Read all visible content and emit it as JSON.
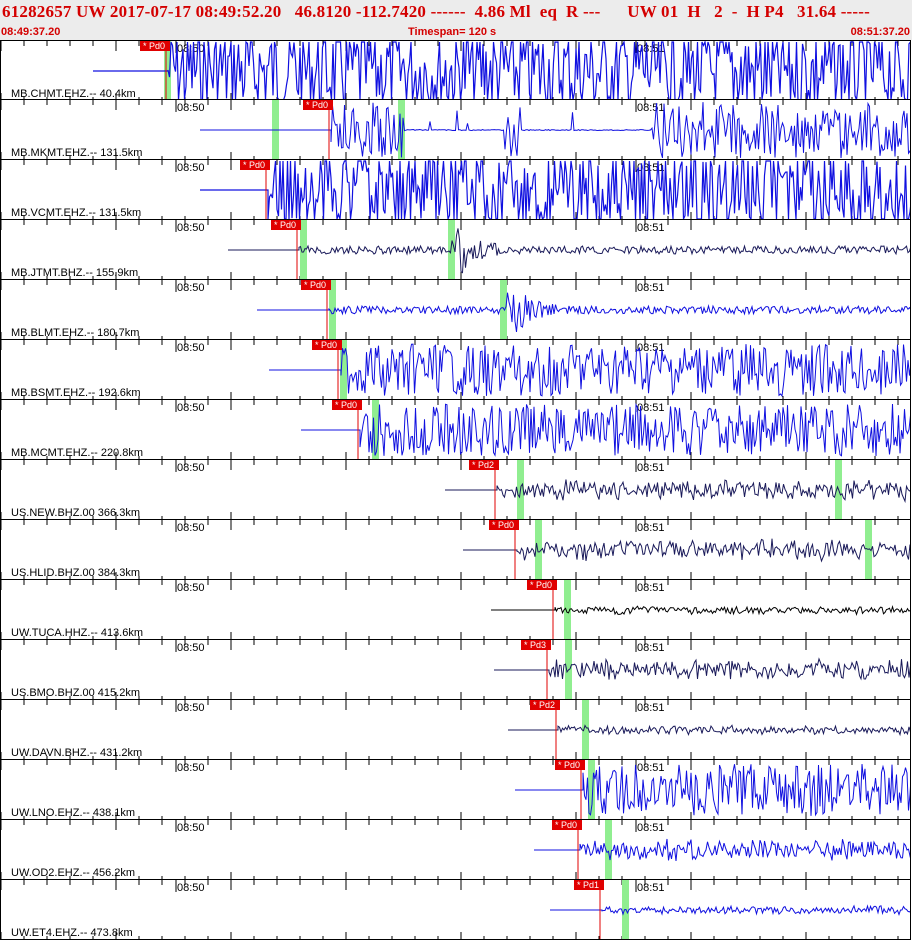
{
  "header": {
    "event_line": "61282657 UW 2017-07-17 08:49:52.20   46.8120 -112.7420 ------  4.86 Ml  eq  R ---      UW 01  H   2  -  H P4   31.64 -----",
    "time_start": "08:49:37.20",
    "timespan": "Timespan= 120 s",
    "time_end": "08:51:37.20"
  },
  "time_labels": {
    "t1": "08:50",
    "t2": "08:51"
  },
  "colors": {
    "trace_blue": "#1010e0",
    "trace_dark": "#1a1a5a",
    "pick_red": "#e00000",
    "green_mark": "#90ee90",
    "header_red": "#d40000"
  },
  "traces": [
    {
      "station": "MB.CHMT.EHZ.-- 40.4km",
      "pick": "* Pd0",
      "style": "saturated",
      "color": "blue"
    },
    {
      "station": "MB.MKMT.EHZ.-- 131.5km",
      "pick": "* Pd0",
      "style": "burst",
      "color": "blue"
    },
    {
      "station": "MB.VCMT.EHZ.-- 131.5km",
      "pick": "* Pd0",
      "style": "saturated",
      "color": "blue"
    },
    {
      "station": "MB.JTMT.BHZ.-- 155.9km",
      "pick": "* Pd0",
      "style": "quiet",
      "color": "dark"
    },
    {
      "station": "MB.BLMT.EHZ.-- 180.7km",
      "pick": "* Pd0",
      "style": "quiet",
      "color": "blue"
    },
    {
      "station": "MB.BSMT.EHZ.-- 192.6km",
      "pick": "* Pd0",
      "style": "heavy",
      "color": "blue"
    },
    {
      "station": "MB.MCMT.EHZ.-- 220.8km",
      "pick": "* Pd0",
      "style": "heavy",
      "color": "blue"
    },
    {
      "station": "US.NEW.BHZ.00 366.3km",
      "pick": "* Pd2",
      "style": "medium",
      "color": "dark"
    },
    {
      "station": "US.HLID.BHZ.00 384.3km",
      "pick": "* Pd0",
      "style": "medium",
      "color": "dark"
    },
    {
      "station": "UW.TUCA.HHZ.-- 413.6km",
      "pick": "* Pd0",
      "style": "thin",
      "color": "black"
    },
    {
      "station": "US.BMO.BHZ.00 415.2km",
      "pick": "* Pd3",
      "style": "medium",
      "color": "dark"
    },
    {
      "station": "UW.DAVN.BHZ.-- 431.2km",
      "pick": "* Pd2",
      "style": "thin",
      "color": "dark"
    },
    {
      "station": "UW.LNO.EHZ.-- 438.1km",
      "pick": "* Pd0",
      "style": "heavy",
      "color": "blue"
    },
    {
      "station": "UW.OD2.EHZ.-- 456.2km",
      "pick": "* Pd0",
      "style": "medium",
      "color": "blue"
    },
    {
      "station": "UW.ET4.EHZ.-- 473.8km",
      "pick": "* Pd1",
      "style": "thin",
      "color": "blue"
    }
  ]
}
